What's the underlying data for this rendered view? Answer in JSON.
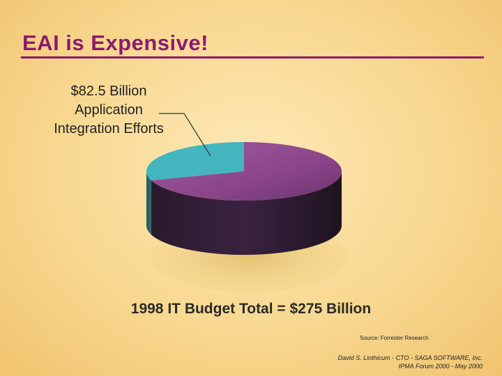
{
  "slide": {
    "title": "EAI is Expensive!",
    "callout": [
      "$82.5 Billion",
      "Application",
      "Integration Efforts"
    ],
    "total": "1998 IT Budget Total = $275 Billion",
    "source": "Source: Forrester Research",
    "footer": [
      "David S. Linthicum - CTO - SAGA SOFTWARE, Inc.",
      "IPMA Forum 2000 - May 2000"
    ]
  },
  "chart_data": {
    "type": "pie",
    "total": 275,
    "slices": [
      {
        "label": "$82.5 Billion Application Integration Efforts",
        "value": 82.5,
        "color": "#43b6bf"
      },
      {
        "label": "",
        "value": 192.5,
        "color": "#8c4a8c"
      }
    ]
  }
}
